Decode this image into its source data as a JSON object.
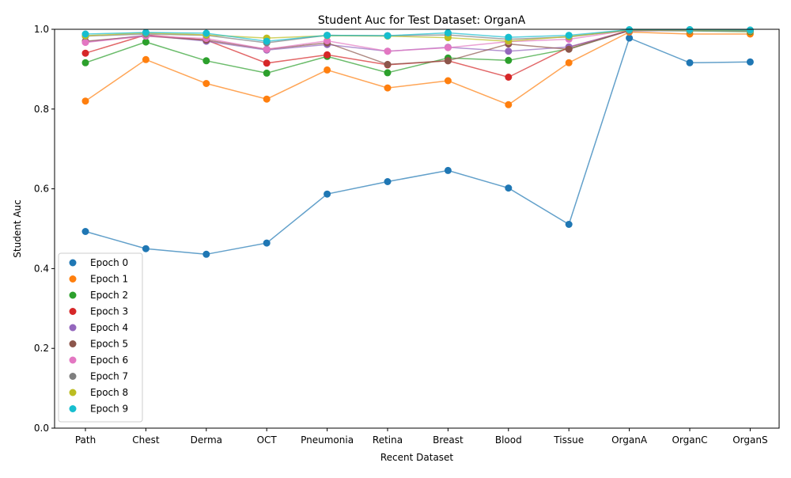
{
  "chart_data": {
    "type": "line",
    "title": "Student Auc for Test Dataset: OrganA",
    "xlabel": "Recent Dataset",
    "ylabel": "Student Auc",
    "ylim": [
      0,
      1
    ],
    "yticks": [
      "0.0",
      "0.2",
      "0.4",
      "0.6",
      "0.8",
      "1.0"
    ],
    "grid": false,
    "legend_position": "lower-left",
    "categories": [
      "Path",
      "Chest",
      "Derma",
      "OCT",
      "Pneumonia",
      "Retina",
      "Breast",
      "Blood",
      "Tissue",
      "OrganA",
      "OrganC",
      "OrganS"
    ],
    "series": [
      {
        "name": "Epoch 0",
        "color": "#1f77b4",
        "values": [
          0.493,
          0.45,
          0.436,
          0.464,
          0.587,
          0.618,
          0.646,
          0.602,
          0.511,
          0.978,
          0.916,
          0.918
        ]
      },
      {
        "name": "Epoch 1",
        "color": "#ff7f0e",
        "values": [
          0.82,
          0.924,
          0.864,
          0.825,
          0.898,
          0.853,
          0.871,
          0.811,
          0.916,
          0.993,
          0.988,
          0.988
        ]
      },
      {
        "name": "Epoch 2",
        "color": "#2ca02c",
        "values": [
          0.916,
          0.968,
          0.921,
          0.89,
          0.932,
          0.891,
          0.928,
          0.922,
          0.951,
          0.997,
          0.996,
          0.994
        ]
      },
      {
        "name": "Epoch 3",
        "color": "#d62728",
        "values": [
          0.94,
          0.986,
          0.973,
          0.915,
          0.936,
          0.911,
          0.921,
          0.88,
          0.955,
          0.997,
          0.998,
          0.997
        ]
      },
      {
        "name": "Epoch 4",
        "color": "#9467bd",
        "values": [
          0.968,
          0.985,
          0.97,
          0.948,
          0.962,
          0.945,
          0.955,
          0.945,
          0.956,
          0.996,
          0.997,
          0.996
        ]
      },
      {
        "name": "Epoch 5",
        "color": "#8c564b",
        "values": [
          0.97,
          0.983,
          0.973,
          0.95,
          0.966,
          0.912,
          0.921,
          0.963,
          0.95,
          0.997,
          0.998,
          0.997
        ]
      },
      {
        "name": "Epoch 6",
        "color": "#e377c2",
        "values": [
          0.967,
          0.983,
          0.977,
          0.95,
          0.971,
          0.945,
          0.954,
          0.969,
          0.975,
          0.998,
          0.998,
          0.997
        ]
      },
      {
        "name": "Epoch 7",
        "color": "#7f7f7f",
        "values": [
          0.983,
          0.988,
          0.985,
          0.966,
          0.985,
          0.984,
          0.986,
          0.975,
          0.981,
          0.998,
          0.999,
          0.998
        ]
      },
      {
        "name": "Epoch 8",
        "color": "#bcbd22",
        "values": [
          0.984,
          0.991,
          0.986,
          0.978,
          0.984,
          0.983,
          0.979,
          0.97,
          0.982,
          0.998,
          0.998,
          0.997
        ]
      },
      {
        "name": "Epoch 9",
        "color": "#17becf",
        "values": [
          0.988,
          0.992,
          0.99,
          0.97,
          0.985,
          0.984,
          0.991,
          0.98,
          0.985,
          0.999,
          0.999,
          0.998
        ]
      }
    ]
  }
}
